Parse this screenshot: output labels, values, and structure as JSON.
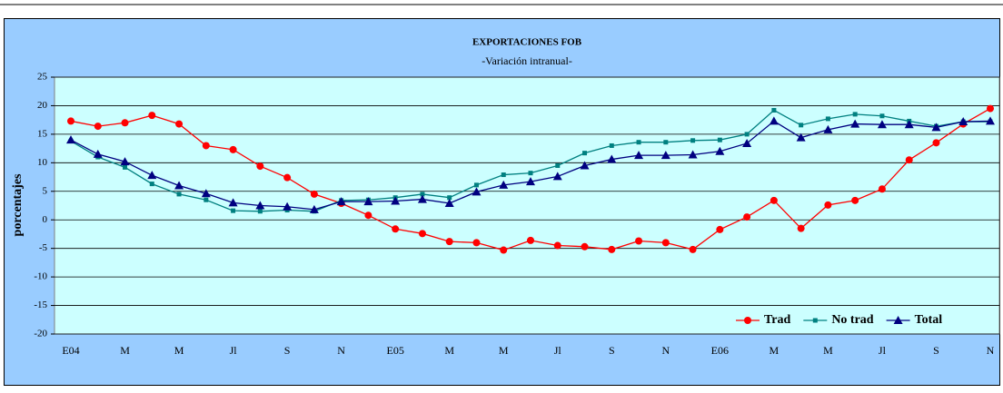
{
  "chart_data": {
    "type": "line",
    "title": "EXPORTACIONES FOB",
    "subtitle": "-Variación intranual-",
    "y_label": "porcentajes",
    "categories": [
      "E04",
      null,
      "M",
      null,
      "M",
      null,
      "Jl",
      null,
      "S",
      null,
      "N",
      null,
      "E05",
      null,
      "M",
      null,
      "M",
      null,
      "Jl",
      null,
      "S",
      null,
      "N",
      null,
      "E06",
      null,
      "M",
      null,
      "M",
      null,
      "Jl",
      null,
      "S",
      null,
      "N"
    ],
    "series": [
      {
        "name": "Trad",
        "color": "#ff0000",
        "marker": "circle",
        "values": [
          17.3,
          16.4,
          17,
          18.3,
          16.8,
          13,
          12.3,
          9.4,
          7.4,
          4.5,
          2.9,
          0.8,
          -1.6,
          -2.4,
          -3.8,
          -4,
          -5.3,
          -3.6,
          -4.5,
          -4.7,
          -5.2,
          -3.7,
          -4,
          -5.2,
          -1.7,
          0.5,
          3.4,
          -1.5,
          2.6,
          3.4,
          5.4,
          10.5,
          13.5,
          16.8,
          19.5
        ]
      },
      {
        "name": "No trad",
        "color": "#008080",
        "marker": "square",
        "values": [
          13.8,
          11,
          9.2,
          6.3,
          4.5,
          3.5,
          1.6,
          1.5,
          1.7,
          1.5,
          3.4,
          3.5,
          3.9,
          4.5,
          3.9,
          6.1,
          7.9,
          8.2,
          9.5,
          11.7,
          13,
          13.6,
          13.6,
          13.9,
          14,
          15,
          19.2,
          16.6,
          17.7,
          18.5,
          18.2,
          17.3,
          16.4,
          17.2,
          17.2
        ]
      },
      {
        "name": "Total",
        "color": "#000080",
        "marker": "triangle",
        "values": [
          14,
          11.5,
          10.2,
          7.8,
          6,
          4.6,
          3,
          2.5,
          2.3,
          1.8,
          3.2,
          3.2,
          3.3,
          3.6,
          2.9,
          4.9,
          6.1,
          6.7,
          7.6,
          9.5,
          10.6,
          11.3,
          11.3,
          11.4,
          12,
          13.4,
          17.3,
          14.4,
          15.8,
          16.8,
          16.7,
          16.7,
          16.2,
          17.2,
          17.3
        ]
      }
    ],
    "ylim": [
      -20,
      25
    ],
    "yticks": [
      -20,
      -15,
      -10,
      -5,
      0,
      5,
      10,
      15,
      20,
      25
    ],
    "grid": true,
    "legend": "lower right"
  }
}
